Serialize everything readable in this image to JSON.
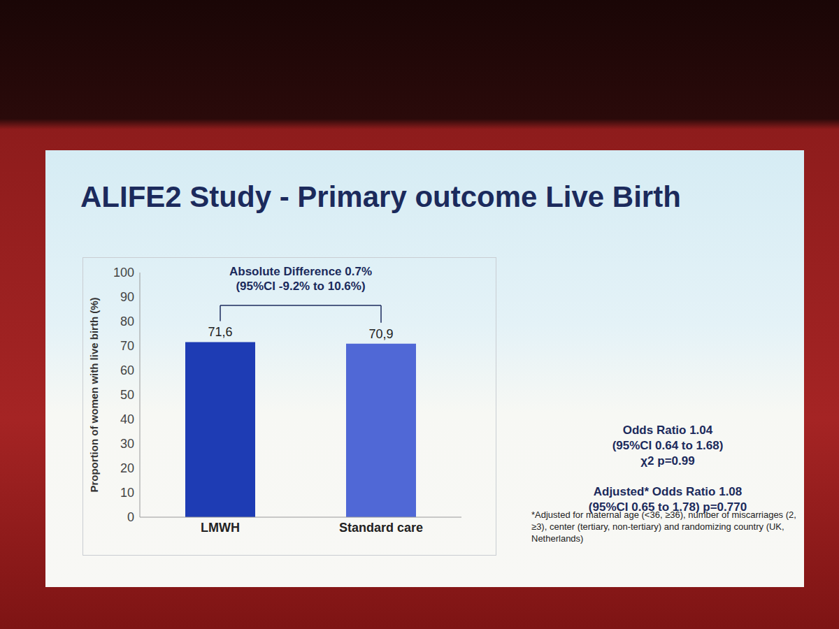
{
  "chart_data": {
    "type": "bar",
    "title": "ALIFE2 Study - Primary outcome Live Birth",
    "y_label": "Proportion of women with live birth (%)",
    "categories": [
      "LMWH",
      "Standard care"
    ],
    "values": [
      71.6,
      70.9
    ],
    "value_labels": [
      "71,6",
      "70,9"
    ],
    "colors": [
      "#1e3cb4",
      "#5068d6"
    ],
    "ylim": [
      0,
      100
    ],
    "yticks": [
      0,
      10,
      20,
      30,
      40,
      50,
      60,
      70,
      80,
      90,
      100
    ],
    "grid": false,
    "data_labels": true,
    "annotations": {
      "difference": [
        "Absolute Difference 0.7%",
        "(95%CI -9.2% to 10.6%)"
      ],
      "statistics": [
        [
          "Odds Ratio 1.04",
          "(95%CI 0.64 to 1.68)",
          "χ2 p=0.99"
        ],
        [
          "Adjusted* Odds Ratio 1.08",
          "(95%CI 0.65 to 1.78) p=0.770"
        ]
      ],
      "footnote": [
        "*Adjusted for maternal age (<36, ≥36), number of miscarriages (2, ≥3), center (tertiary, non-tertiary) and randomizing country (UK, Netherlands)"
      ]
    }
  }
}
